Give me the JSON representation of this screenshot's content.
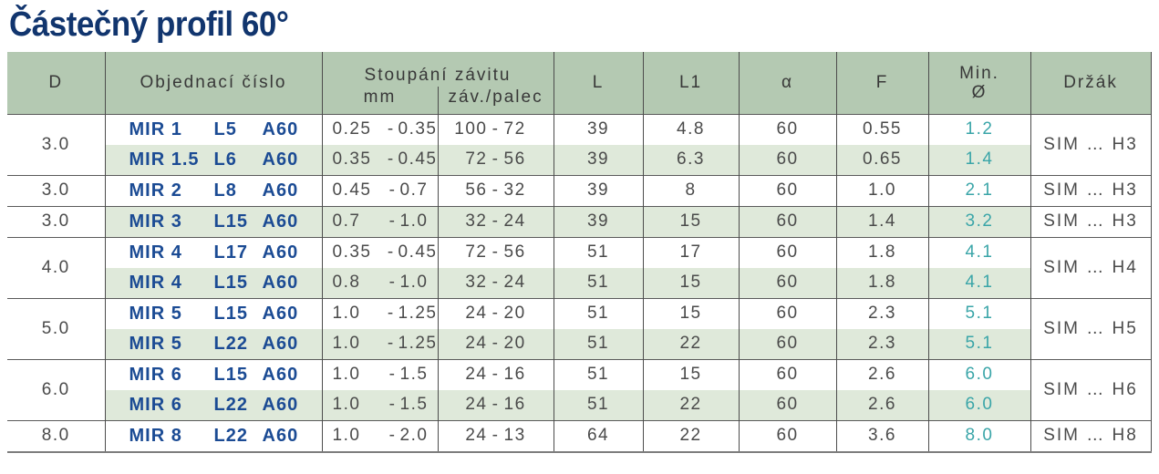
{
  "title": "Částečný profil 60°",
  "table": {
    "dash": "-",
    "headers": {
      "d": "D",
      "order": "Objednací číslo",
      "pitch_group": "Stoupání závitu",
      "pitch_mm": "mm",
      "pitch_tpi": "záv./palec",
      "l": "L",
      "l1": "L1",
      "alpha": "α",
      "f": "F",
      "min_line1": "Min.",
      "min_line2": "Ø",
      "holder": "Držák"
    },
    "groups": [
      {
        "d": "3.0",
        "holder": "SIM … H3",
        "rows": [
          {
            "order": [
              "MIR 1",
              "L5",
              "A60"
            ],
            "mm_from": "0.25",
            "mm_to": "0.35",
            "tpi_from": "100",
            "tpi_to": "72",
            "l": "39",
            "l1": "4.8",
            "alpha": "60",
            "f": "0.55",
            "min_d": "1.2"
          },
          {
            "order": [
              "MIR 1.5",
              "L6",
              "A60"
            ],
            "mm_from": "0.35",
            "mm_to": "0.45",
            "tpi_from": "72",
            "tpi_to": "56",
            "l": "39",
            "l1": "6.3",
            "alpha": "60",
            "f": "0.65",
            "min_d": "1.4"
          }
        ]
      },
      {
        "d": "3.0",
        "holder": "SIM … H3",
        "rows": [
          {
            "order": [
              "MIR 2",
              "L8",
              "A60"
            ],
            "mm_from": "0.45",
            "mm_to": "0.7",
            "tpi_from": "56",
            "tpi_to": "32",
            "l": "39",
            "l1": "8",
            "alpha": "60",
            "f": "1.0",
            "min_d": "2.1"
          }
        ]
      },
      {
        "d": "3.0",
        "holder": "SIM … H3",
        "rows": [
          {
            "order": [
              "MIR 3",
              "L15",
              "A60"
            ],
            "mm_from": "0.7",
            "mm_to": "1.0",
            "tpi_from": "32",
            "tpi_to": "24",
            "l": "39",
            "l1": "15",
            "alpha": "60",
            "f": "1.4",
            "min_d": "3.2"
          }
        ]
      },
      {
        "d": "4.0",
        "holder": "SIM … H4",
        "rows": [
          {
            "order": [
              "MIR 4",
              "L17",
              "A60"
            ],
            "mm_from": "0.35",
            "mm_to": "0.45",
            "tpi_from": "72",
            "tpi_to": "56",
            "l": "51",
            "l1": "17",
            "alpha": "60",
            "f": "1.8",
            "min_d": "4.1"
          },
          {
            "order": [
              "MIR 4",
              "L15",
              "A60"
            ],
            "mm_from": "0.8",
            "mm_to": "1.0",
            "tpi_from": "32",
            "tpi_to": "24",
            "l": "51",
            "l1": "15",
            "alpha": "60",
            "f": "1.8",
            "min_d": "4.1"
          }
        ]
      },
      {
        "d": "5.0",
        "holder": "SIM … H5",
        "rows": [
          {
            "order": [
              "MIR 5",
              "L15",
              "A60"
            ],
            "mm_from": "1.0",
            "mm_to": "1.25",
            "tpi_from": "24",
            "tpi_to": "20",
            "l": "51",
            "l1": "15",
            "alpha": "60",
            "f": "2.3",
            "min_d": "5.1"
          },
          {
            "order": [
              "MIR 5",
              "L22",
              "A60"
            ],
            "mm_from": "1.0",
            "mm_to": "1.25",
            "tpi_from": "24",
            "tpi_to": "20",
            "l": "51",
            "l1": "22",
            "alpha": "60",
            "f": "2.3",
            "min_d": "5.1"
          }
        ]
      },
      {
        "d": "6.0",
        "holder": "SIM … H6",
        "rows": [
          {
            "order": [
              "MIR 6",
              "L15",
              "A60"
            ],
            "mm_from": "1.0",
            "mm_to": "1.5",
            "tpi_from": "24",
            "tpi_to": "16",
            "l": "51",
            "l1": "15",
            "alpha": "60",
            "f": "2.6",
            "min_d": "6.0"
          },
          {
            "order": [
              "MIR 6",
              "L22",
              "A60"
            ],
            "mm_from": "1.0",
            "mm_to": "1.5",
            "tpi_from": "24",
            "tpi_to": "16",
            "l": "51",
            "l1": "22",
            "alpha": "60",
            "f": "2.6",
            "min_d": "6.0"
          }
        ]
      },
      {
        "d": "8.0",
        "holder": "SIM … H8",
        "rows": [
          {
            "order": [
              "MIR 8",
              "L22",
              "A60"
            ],
            "mm_from": "1.0",
            "mm_to": "2.0",
            "tpi_from": "24",
            "tpi_to": "13",
            "l": "64",
            "l1": "22",
            "alpha": "60",
            "f": "3.6",
            "min_d": "8.0"
          }
        ]
      }
    ],
    "colors": {
      "title_text": "#11356e",
      "header_bg": "#b4c9b2",
      "stripe_bg": "#dfe9da",
      "order_text": "#1b4b94",
      "min_diameter_text": "#3aa5a8",
      "body_text": "#4a4a4a",
      "grid_line": "#4c4c4c"
    }
  }
}
